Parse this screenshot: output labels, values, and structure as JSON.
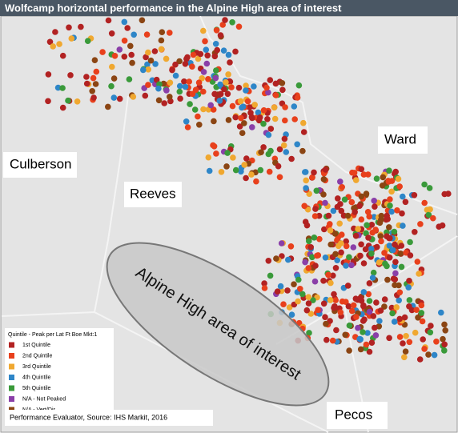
{
  "header": {
    "title": "Wolfcamp horizontal performance in the Alpine High area of interest"
  },
  "regions": [
    {
      "label": "Culberson"
    },
    {
      "label": "Reeves"
    },
    {
      "label": "Ward"
    },
    {
      "label": "Pecos"
    }
  ],
  "area": {
    "label": "Alpine High area of interest"
  },
  "legend": {
    "title": "Quintile - Peak per Lat Ft Boe Mkt:1",
    "items": [
      {
        "label": "1st Quintile",
        "color": "#b22222"
      },
      {
        "label": "2nd Quintile",
        "color": "#e8401c"
      },
      {
        "label": "3rd Quintile",
        "color": "#f0a830"
      },
      {
        "label": "4th Quintile",
        "color": "#2e86c8"
      },
      {
        "label": "5th Quintile",
        "color": "#3a9a3a"
      },
      {
        "label": "N/A - Not Peaked",
        "color": "#8a3fa8"
      },
      {
        "label": "N/A - Vert/Dir",
        "color": "#8b4513"
      }
    ]
  },
  "source": "Performance Evaluator, Source: IHS Markit, 2016"
}
